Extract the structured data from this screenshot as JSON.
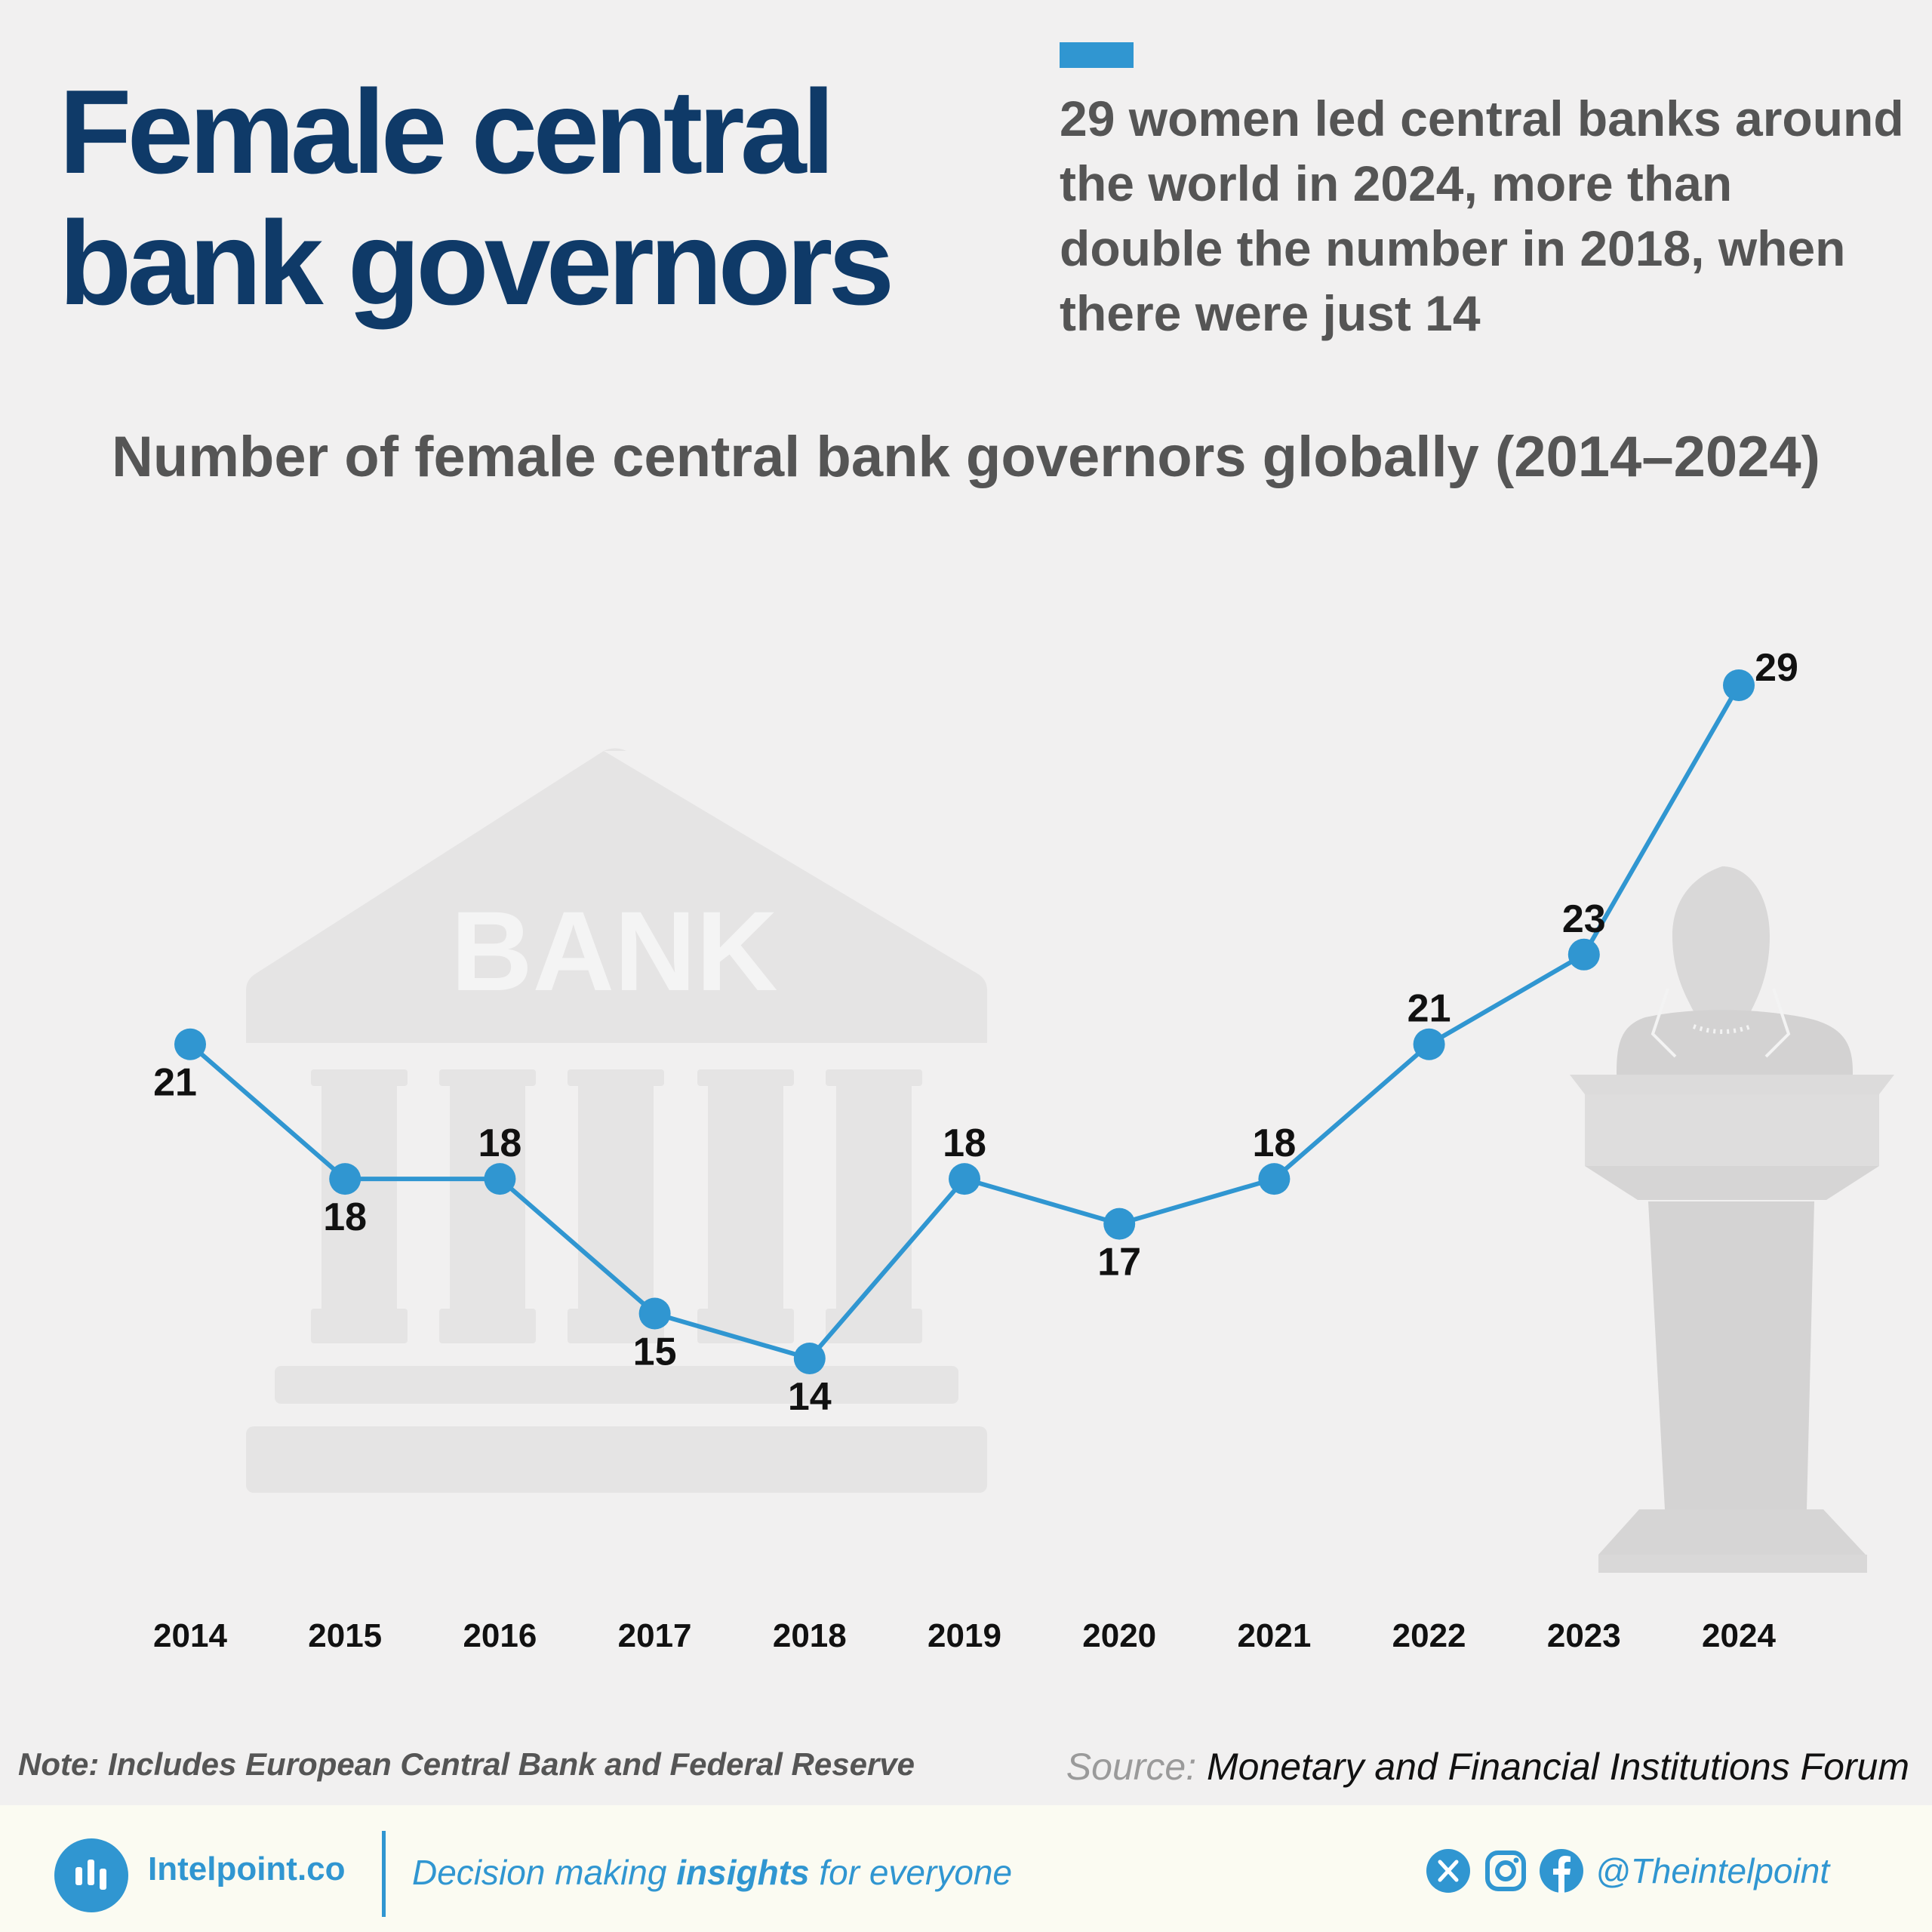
{
  "header": {
    "title_line1": "Female central",
    "title_line2": "bank governors",
    "summary": "29 women led central banks around the world in 2024, more than double the number in 2018, when there were just 14"
  },
  "chart_data": {
    "type": "line",
    "title": "Number of female central bank governors globally (2014–2024)",
    "categories": [
      "2014",
      "2015",
      "2016",
      "2017",
      "2018",
      "2019",
      "2020",
      "2021",
      "2022",
      "2023",
      "2024"
    ],
    "values": [
      21,
      18,
      18,
      15,
      14,
      18,
      17,
      18,
      21,
      23,
      29
    ],
    "ylim": [
      14,
      29
    ],
    "grid": false,
    "color": "#3096d1"
  },
  "illustrations": {
    "bank_sign": "BANK",
    "bank_icon": "bank-building-icon",
    "podium_icon": "woman-at-podium-icon"
  },
  "footnote": {
    "note": "Note: Includes European Central Bank and Federal Reserve",
    "source_label": "Source:",
    "source_value": "Monetary and Financial Institutions Forum"
  },
  "footer": {
    "brand": "Intelpoint.co",
    "tagline_pre": "Decision making",
    "tagline_bold": "insights",
    "tagline_post": "for everyone",
    "handle": "@Theintelpoint",
    "social_icons": [
      "x-icon",
      "instagram-icon",
      "facebook-icon"
    ]
  }
}
